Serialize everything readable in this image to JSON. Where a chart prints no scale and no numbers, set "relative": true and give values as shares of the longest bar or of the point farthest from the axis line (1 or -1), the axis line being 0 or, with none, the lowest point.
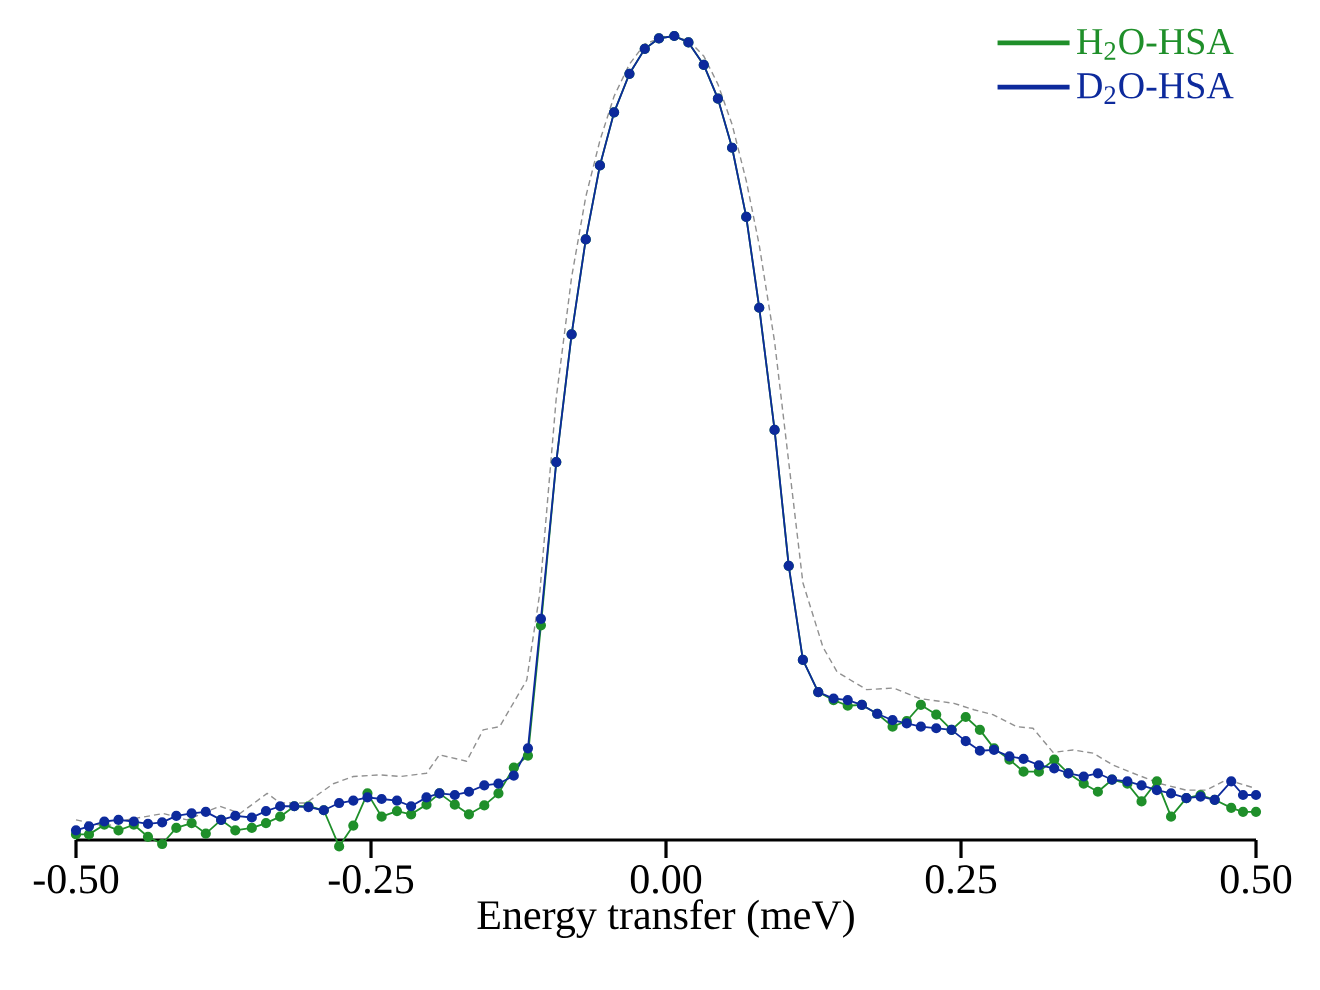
{
  "chart_data": {
    "type": "line",
    "relative": true,
    "xlabel": "Energy transfer (meV)",
    "xlim": [
      -0.5,
      0.5
    ],
    "xticks": [
      {
        "value": -0.5,
        "label": "-0.50"
      },
      {
        "value": -0.25,
        "label": "-0.25"
      },
      {
        "value": 0,
        "label": "0.00"
      },
      {
        "value": 0.25,
        "label": "0.25"
      },
      {
        "value": 0.5,
        "label": "0.50"
      }
    ],
    "legend": "top right",
    "grid": false,
    "x": [
      -0.5,
      -0.489,
      -0.476,
      -0.464,
      -0.451,
      -0.439,
      -0.427,
      -0.415,
      -0.402,
      -0.39,
      -0.377,
      -0.365,
      -0.351,
      -0.339,
      -0.327,
      -0.315,
      -0.303,
      -0.29,
      -0.277,
      -0.265,
      -0.253,
      -0.241,
      -0.228,
      -0.216,
      -0.203,
      -0.192,
      -0.179,
      -0.167,
      -0.154,
      -0.142,
      -0.129,
      -0.117,
      -0.106,
      -0.093,
      -0.08,
      -0.068,
      -0.056,
      -0.044,
      -0.031,
      -0.018,
      -0.006,
      0.007,
      0.019,
      0.032,
      0.044,
      0.056,
      0.068,
      0.079,
      0.092,
      0.104,
      0.116,
      0.129,
      0.142,
      0.154,
      0.166,
      0.179,
      0.192,
      0.204,
      0.216,
      0.229,
      0.242,
      0.254,
      0.266,
      0.278,
      0.291,
      0.303,
      0.316,
      0.329,
      0.341,
      0.354,
      0.366,
      0.378,
      0.391,
      0.403,
      0.416,
      0.428,
      0.441,
      0.453,
      0.465,
      0.479,
      0.489,
      0.5
    ],
    "series": [
      {
        "color": "#909090",
        "line_style": "dashed",
        "marker": "none",
        "x": [
          -0.5,
          -0.474,
          -0.457,
          -0.426,
          -0.406,
          -0.378,
          -0.361,
          -0.338,
          -0.327,
          -0.305,
          -0.282,
          -0.265,
          -0.242,
          -0.225,
          -0.203,
          -0.192,
          -0.169,
          -0.155,
          -0.141,
          -0.118,
          -0.107,
          -0.093,
          -0.08,
          -0.068,
          -0.056,
          -0.044,
          -0.031,
          -0.018,
          0.0,
          0.019,
          0.032,
          0.044,
          0.056,
          0.068,
          0.079,
          0.092,
          0.104,
          0.116,
          0.133,
          0.145,
          0.17,
          0.193,
          0.215,
          0.244,
          0.261,
          0.277,
          0.297,
          0.311,
          0.328,
          0.345,
          0.362,
          0.379,
          0.396,
          0.419,
          0.441,
          0.458,
          0.475,
          0.498
        ],
        "values": [
          0.025,
          0.017,
          0.025,
          0.033,
          0.025,
          0.042,
          0.033,
          0.058,
          0.046,
          0.046,
          0.07,
          0.079,
          0.081,
          0.079,
          0.083,
          0.106,
          0.098,
          0.137,
          0.141,
          0.199,
          0.307,
          0.55,
          0.7,
          0.8,
          0.87,
          0.925,
          0.965,
          0.99,
          1.0,
          0.995,
          0.975,
          0.94,
          0.89,
          0.82,
          0.74,
          0.62,
          0.47,
          0.32,
          0.24,
          0.209,
          0.187,
          0.189,
          0.176,
          0.17,
          0.162,
          0.156,
          0.141,
          0.139,
          0.109,
          0.112,
          0.108,
          0.093,
          0.083,
          0.07,
          0.062,
          0.062,
          0.075,
          0.065
        ]
      },
      {
        "name": "H$_{2}$O-HSA",
        "color": "#1f8f2a",
        "line_style": "solid",
        "marker": "circle",
        "values": [
          0.007,
          0.007,
          0.019,
          0.012,
          0.019,
          0.004,
          -0.005,
          0.015,
          0.021,
          0.008,
          0.025,
          0.012,
          0.015,
          0.021,
          0.029,
          0.042,
          0.042,
          0.037,
          -0.008,
          0.018,
          0.058,
          0.029,
          0.036,
          0.032,
          0.044,
          0.058,
          0.044,
          0.032,
          0.043,
          0.058,
          0.09,
          0.105,
          0.267,
          0.47,
          0.629,
          0.747,
          0.839,
          0.905,
          0.953,
          0.984,
          0.997,
          1.0,
          0.992,
          0.964,
          0.922,
          0.861,
          0.775,
          0.662,
          0.51,
          0.341,
          0.224,
          0.184,
          0.174,
          0.167,
          0.168,
          0.157,
          0.141,
          0.148,
          0.168,
          0.156,
          0.137,
          0.153,
          0.137,
          0.114,
          0.1,
          0.085,
          0.085,
          0.1,
          0.083,
          0.07,
          0.06,
          0.075,
          0.07,
          0.048,
          0.073,
          0.029,
          0.052,
          0.056,
          0.05,
          0.04,
          0.035,
          0.035
        ]
      },
      {
        "name": "D$_{2}$O-HSA",
        "color": "#0d2a9c",
        "line_style": "solid",
        "marker": "circle",
        "values": [
          0.012,
          0.017,
          0.023,
          0.025,
          0.023,
          0.02,
          0.022,
          0.03,
          0.033,
          0.035,
          0.025,
          0.03,
          0.028,
          0.036,
          0.042,
          0.042,
          0.041,
          0.037,
          0.046,
          0.049,
          0.053,
          0.051,
          0.049,
          0.042,
          0.053,
          0.058,
          0.056,
          0.06,
          0.068,
          0.07,
          0.08,
          0.114,
          0.275,
          0.47,
          0.629,
          0.747,
          0.839,
          0.905,
          0.953,
          0.984,
          0.997,
          1.0,
          0.992,
          0.964,
          0.922,
          0.861,
          0.775,
          0.662,
          0.51,
          0.341,
          0.224,
          0.184,
          0.176,
          0.174,
          0.168,
          0.157,
          0.149,
          0.145,
          0.141,
          0.139,
          0.137,
          0.123,
          0.111,
          0.112,
          0.104,
          0.101,
          0.093,
          0.089,
          0.083,
          0.079,
          0.083,
          0.075,
          0.073,
          0.068,
          0.062,
          0.058,
          0.052,
          0.054,
          0.05,
          0.073,
          0.056,
          0.056
        ]
      }
    ]
  }
}
